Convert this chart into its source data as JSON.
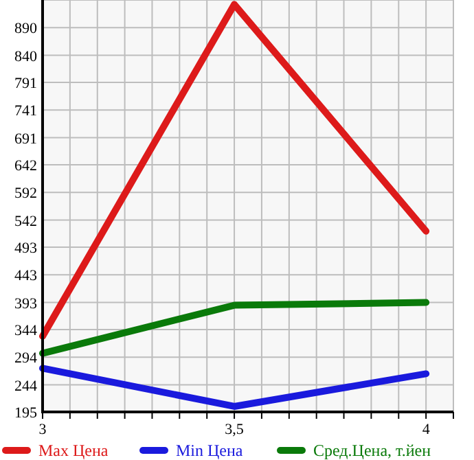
{
  "chart_data": {
    "type": "line",
    "x": [
      3,
      3.5,
      4
    ],
    "xlim": [
      3,
      4.0714
    ],
    "xticks": [
      3,
      {
        "value": 3.0714,
        "label": null
      },
      {
        "value": 3.1429,
        "label": null
      },
      {
        "value": 3.2143,
        "label": null
      },
      {
        "value": 3.2857,
        "label": null
      },
      {
        "value": 3.3571,
        "label": null
      },
      {
        "value": 3.4286,
        "label": null
      },
      {
        "value": 3.5,
        "label": "3,5"
      },
      {
        "value": 3.5714,
        "label": null
      },
      {
        "value": 3.6429,
        "label": null
      },
      {
        "value": 3.7143,
        "label": null
      },
      {
        "value": 3.7857,
        "label": null
      },
      {
        "value": 3.8571,
        "label": null
      },
      {
        "value": 3.9286,
        "label": null
      },
      4,
      {
        "value": 4.0714,
        "label": null
      }
    ],
    "ylim": [
      195,
      940
    ],
    "yticks": [
      195,
      244,
      294,
      344,
      393,
      443,
      493,
      542,
      592,
      642,
      691,
      741,
      791,
      840,
      890,
      {
        "value": 940,
        "label": null
      }
    ],
    "grid": true,
    "legend": "bottom",
    "marker": "none",
    "line_style": "solid",
    "series": [
      {
        "name": "Max Цена",
        "color": "#dd1a1a",
        "values": [
          332,
          932,
          522
        ]
      },
      {
        "name": "Min Цена",
        "color": "#1a1add",
        "values": [
          274,
          205,
          264
        ]
      },
      {
        "name": "Сред.Цена, т.йен",
        "color": "#0a7a0a",
        "values": [
          301,
          388,
          393
        ]
      }
    ]
  }
}
